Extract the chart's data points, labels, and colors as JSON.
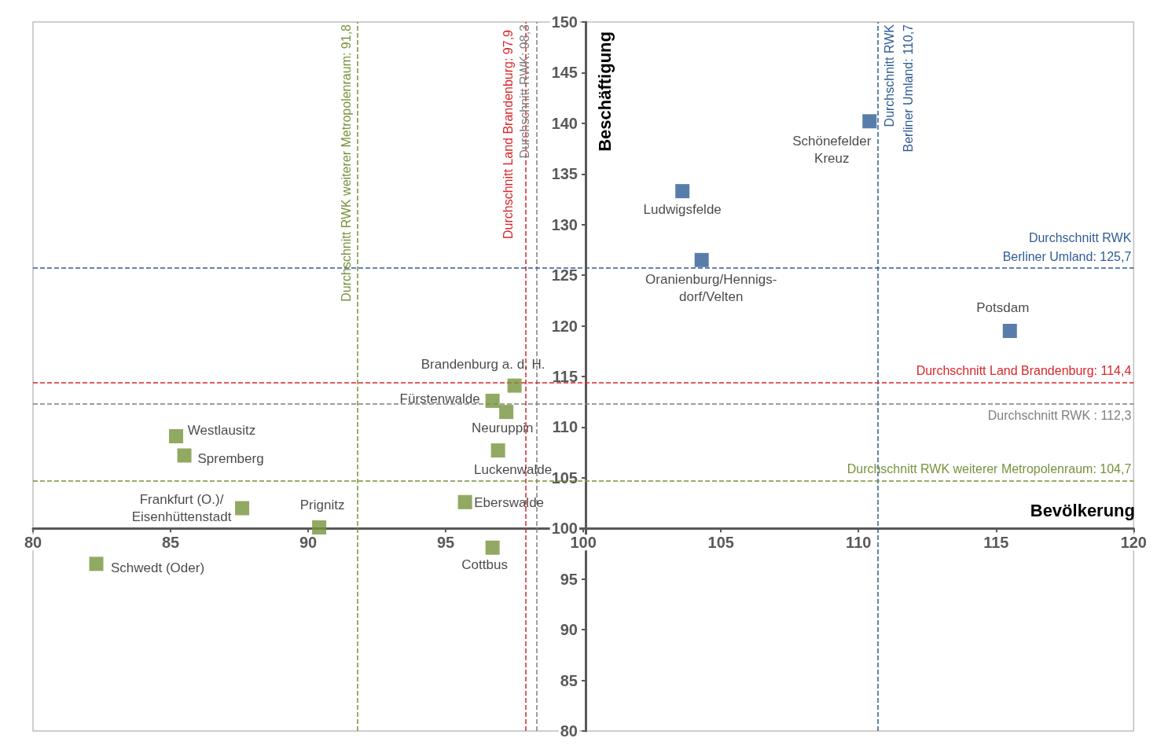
{
  "chart_data": {
    "type": "scatter",
    "xlabel": "Bevölkerung",
    "ylabel": "Beschäftigung",
    "marker": "square",
    "xlim": [
      80,
      120
    ],
    "xticks": [
      80,
      85,
      90,
      95,
      100,
      105,
      110,
      115,
      120
    ],
    "ylim": [
      80,
      150
    ],
    "yticks": [
      80,
      85,
      90,
      95,
      100,
      105,
      110,
      115,
      120,
      125,
      130,
      135,
      140,
      145,
      150
    ],
    "series": [
      {
        "color": "#2f5d95",
        "x": [
          110.4,
          103.6,
          104.3,
          115.5
        ],
        "values": [
          140.2,
          133.3,
          126.5,
          119.5
        ]
      },
      {
        "color": "#77933c",
        "x": [
          85.2,
          85.5,
          87.6,
          90.4,
          82.3,
          97.5,
          96.7,
          97.2,
          96.9,
          95.7,
          96.7
        ],
        "values": [
          109.1,
          107.2,
          102.0,
          100.1,
          96.5,
          114.1,
          112.6,
          111.5,
          107.7,
          102.6,
          98.1
        ]
      }
    ],
    "annotations": [
      {
        "text": "Schönefelder\nKreuz",
        "x": 110.4,
        "y": 140.2
      },
      {
        "text": "Ludwigsfelde",
        "x": 103.6,
        "y": 133.3
      },
      {
        "text": "Oranienburg/Hennigs-\ndorf/Velten",
        "x": 104.3,
        "y": 126.5
      },
      {
        "text": "Potsdam",
        "x": 115.5,
        "y": 119.5
      },
      {
        "text": "Westlausitz",
        "x": 85.2,
        "y": 109.1
      },
      {
        "text": "Spremberg",
        "x": 85.5,
        "y": 107.2
      },
      {
        "text": "Frankfurt (O.)/\nEisenhüttenstadt",
        "x": 87.6,
        "y": 102.0
      },
      {
        "text": "Prignitz",
        "x": 90.4,
        "y": 100.1
      },
      {
        "text": "Schwedt (Oder)",
        "x": 82.3,
        "y": 96.5
      },
      {
        "text": "Brandenburg a. d. H.",
        "x": 97.5,
        "y": 114.1
      },
      {
        "text": "Fürstenwalde",
        "x": 96.7,
        "y": 112.6
      },
      {
        "text": "Neuruppin",
        "x": 97.2,
        "y": 111.5
      },
      {
        "text": "Luckenwalde",
        "x": 96.9,
        "y": 107.7
      },
      {
        "text": "Eberswalde",
        "x": 95.7,
        "y": 102.6
      },
      {
        "text": "Cottbus",
        "x": 96.7,
        "y": 98.1
      }
    ],
    "ref_lines": [
      {
        "axis": "x",
        "value": 91.8,
        "label": "Durchschnitt RWK weiterer Metropolenraum: 91,8",
        "color": "#77933c",
        "line_style": "dashed"
      },
      {
        "axis": "x",
        "value": 97.9,
        "label": "Durchschnitt Land Brandenburg: 97,9",
        "color": "#d9262b",
        "line_style": "dashed"
      },
      {
        "axis": "x",
        "value": 98.3,
        "label": "Durchschnitt RWK: 98,3",
        "color": "#808080",
        "line_style": "dashed"
      },
      {
        "axis": "x",
        "value": 110.7,
        "label": "Durchschnitt RWK\nBerliner Umland: 110,7",
        "color": "#2f5d95",
        "line_style": "dashed"
      },
      {
        "axis": "y",
        "value": 125.7,
        "label": "Durchschnitt RWK\nBerliner Umland: 125,7",
        "color": "#2f5d95",
        "line_style": "dashed"
      },
      {
        "axis": "y",
        "value": 114.4,
        "label": "Durchschnitt Land Brandenburg: 114,4",
        "color": "#d9262b",
        "line_style": "dashed"
      },
      {
        "axis": "y",
        "value": 112.3,
        "label": "Durchschnitt RWK : 112,3",
        "color": "#808080",
        "line_style": "dashed"
      },
      {
        "axis": "y",
        "value": 104.7,
        "label": "Durchschnitt RWK weiterer Metropolenraum: 104,7",
        "color": "#77933c",
        "line_style": "dashed"
      }
    ]
  }
}
